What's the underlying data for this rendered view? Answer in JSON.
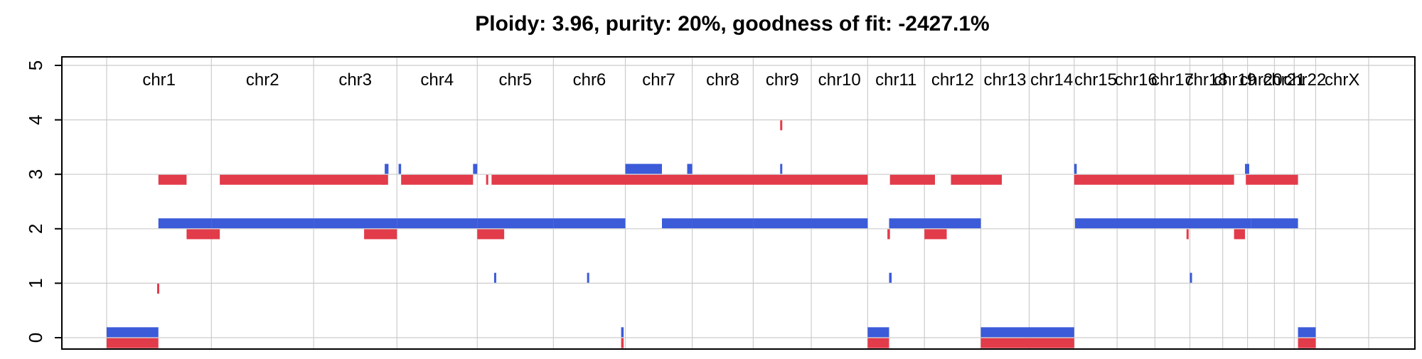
{
  "chart_data": {
    "type": "scatter",
    "title": "Ploidy: 3.96, purity: 20%, goodness of fit: -2427.1%",
    "xlabel": "",
    "ylabel": "",
    "ylim": [
      -0.2,
      5.1
    ],
    "xlim": [
      0,
      3000
    ],
    "yticks": [
      "0",
      "1",
      "2",
      "3",
      "4",
      "5"
    ],
    "grid": true,
    "colors": {
      "major": "#3b5bd9",
      "minor": "#e23b4a",
      "grid": "#cccccc",
      "axis": "#000000"
    },
    "chromosomes": [
      {
        "name": "chr1",
        "start": 0,
        "end": 249
      },
      {
        "name": "chr2",
        "start": 249,
        "end": 492
      },
      {
        "name": "chr3",
        "start": 492,
        "end": 690
      },
      {
        "name": "chr4",
        "start": 690,
        "end": 881
      },
      {
        "name": "chr5",
        "start": 881,
        "end": 1062
      },
      {
        "name": "chr6",
        "start": 1062,
        "end": 1233
      },
      {
        "name": "chr7",
        "start": 1233,
        "end": 1392
      },
      {
        "name": "chr8",
        "start": 1392,
        "end": 1537
      },
      {
        "name": "chr9",
        "start": 1537,
        "end": 1675
      },
      {
        "name": "chr10",
        "start": 1675,
        "end": 1809
      },
      {
        "name": "chr11",
        "start": 1809,
        "end": 1944
      },
      {
        "name": "chr12",
        "start": 1944,
        "end": 2078
      },
      {
        "name": "chr13",
        "start": 2078,
        "end": 2193
      },
      {
        "name": "chr14",
        "start": 2193,
        "end": 2300
      },
      {
        "name": "chr15",
        "start": 2300,
        "end": 2402
      },
      {
        "name": "chr16",
        "start": 2402,
        "end": 2492
      },
      {
        "name": "chr17",
        "start": 2492,
        "end": 2575
      },
      {
        "name": "chr18",
        "start": 2575,
        "end": 2653
      },
      {
        "name": "chr19",
        "start": 2653,
        "end": 2712
      },
      {
        "name": "chr20",
        "start": 2712,
        "end": 2776
      },
      {
        "name": "chr21",
        "start": 2776,
        "end": 2823
      },
      {
        "name": "chr22",
        "start": 2823,
        "end": 2874
      },
      {
        "name": "chrX",
        "start": 2874,
        "end": 3000
      }
    ],
    "series": [
      {
        "values": [
          {
            "x0": 0,
            "x1": 123,
            "y": 0.1
          },
          {
            "x0": 123,
            "x1": 249,
            "y": 2.1
          },
          {
            "x0": 249,
            "x1": 492,
            "y": 2.1
          },
          {
            "x0": 492,
            "x1": 690,
            "y": 2.1
          },
          {
            "x0": 661,
            "x1": 670,
            "y": 3.1
          },
          {
            "x0": 690,
            "x1": 881,
            "y": 2.1
          },
          {
            "x0": 694,
            "x1": 700,
            "y": 3.1
          },
          {
            "x0": 871,
            "x1": 881,
            "y": 3.1
          },
          {
            "x0": 881,
            "x1": 1062,
            "y": 2.1
          },
          {
            "x0": 921,
            "x1": 925,
            "y": 1.1
          },
          {
            "x0": 1062,
            "x1": 1233,
            "y": 2.1
          },
          {
            "x0": 1142,
            "x1": 1146,
            "y": 1.1
          },
          {
            "x0": 1223,
            "x1": 1229,
            "y": 0.1
          },
          {
            "x0": 1233,
            "x1": 1320,
            "y": 3.1
          },
          {
            "x0": 1320,
            "x1": 1392,
            "y": 2.1
          },
          {
            "x0": 1380,
            "x1": 1392,
            "y": 3.1
          },
          {
            "x0": 1392,
            "x1": 1537,
            "y": 2.1
          },
          {
            "x0": 1537,
            "x1": 1675,
            "y": 2.1
          },
          {
            "x0": 1601,
            "x1": 1606,
            "y": 3.1
          },
          {
            "x0": 1675,
            "x1": 1809,
            "y": 2.1
          },
          {
            "x0": 1809,
            "x1": 1860,
            "y": 0.1
          },
          {
            "x0": 1860,
            "x1": 1866,
            "y": 1.1
          },
          {
            "x0": 1860,
            "x1": 2078,
            "y": 2.1
          },
          {
            "x0": 2078,
            "x1": 2300,
            "y": 0.1
          },
          {
            "x0": 2300,
            "x1": 2306,
            "y": 3.1
          },
          {
            "x0": 2302,
            "x1": 2720,
            "y": 2.1
          },
          {
            "x0": 2575,
            "x1": 2580,
            "y": 1.1
          },
          {
            "x0": 2706,
            "x1": 2716,
            "y": 3.1
          },
          {
            "x0": 2720,
            "x1": 2832,
            "y": 2.1
          },
          {
            "x0": 2832,
            "x1": 2874,
            "y": 0.1
          }
        ]
      },
      {
        "values": [
          {
            "x0": 0,
            "x1": 123,
            "y": -0.1
          },
          {
            "x0": 120,
            "x1": 124,
            "y": 0.9
          },
          {
            "x0": 123,
            "x1": 190,
            "y": 2.9
          },
          {
            "x0": 190,
            "x1": 269,
            "y": 1.9
          },
          {
            "x0": 269,
            "x1": 662,
            "y": 2.9
          },
          {
            "x0": 612,
            "x1": 690,
            "y": 1.9
          },
          {
            "x0": 655,
            "x1": 669,
            "y": 2.9
          },
          {
            "x0": 700,
            "x1": 871,
            "y": 2.9
          },
          {
            "x0": 881,
            "x1": 945,
            "y": 1.9
          },
          {
            "x0": 902,
            "x1": 906,
            "y": 2.9
          },
          {
            "x0": 915,
            "x1": 1809,
            "y": 2.9
          },
          {
            "x0": 1223,
            "x1": 1229,
            "y": -0.1
          },
          {
            "x0": 1601,
            "x1": 1606,
            "y": 3.9
          },
          {
            "x0": 1809,
            "x1": 1860,
            "y": -0.1
          },
          {
            "x0": 1856,
            "x1": 1862,
            "y": 1.9
          },
          {
            "x0": 1862,
            "x1": 1969,
            "y": 2.9
          },
          {
            "x0": 1944,
            "x1": 1997,
            "y": 1.9
          },
          {
            "x0": 2007,
            "x1": 2128,
            "y": 2.9
          },
          {
            "x0": 2078,
            "x1": 2300,
            "y": -0.1
          },
          {
            "x0": 2300,
            "x1": 2680,
            "y": 2.9
          },
          {
            "x0": 2567,
            "x1": 2571,
            "y": 1.9
          },
          {
            "x0": 2680,
            "x1": 2706,
            "y": 1.9
          },
          {
            "x0": 2708,
            "x1": 2832,
            "y": 2.9
          },
          {
            "x0": 2832,
            "x1": 2874,
            "y": -0.1
          }
        ]
      }
    ]
  }
}
